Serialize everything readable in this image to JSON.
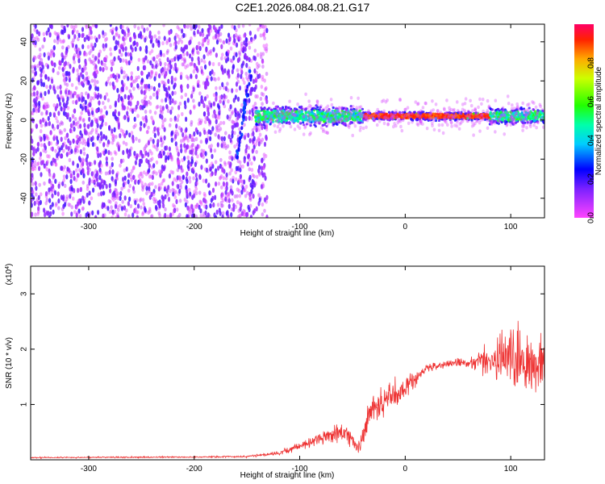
{
  "title": "C2E1.2026.084.08.21.G17",
  "chart_data": [
    {
      "type": "heatmap",
      "xlabel": "Height of straight line (km)",
      "ylabel": "Frequency (Hz)",
      "xlim": [
        -355,
        132
      ],
      "ylim": [
        -50,
        49
      ],
      "xticks": [
        -300,
        -200,
        -100,
        0,
        100
      ],
      "xtick_labels": [
        "-300",
        "-200",
        "-100",
        "0",
        "100"
      ],
      "yticks": [
        -40,
        -20,
        0,
        20,
        40
      ],
      "ytick_labels": [
        "-40",
        "-20",
        "0",
        "20",
        "40"
      ],
      "colorbar": {
        "label": "Normalized spectral amplitude",
        "range": [
          0,
          1
        ],
        "ticks": [
          0,
          0.2,
          0.4,
          0.6,
          0.8
        ],
        "tick_labels": [
          "0.0",
          "0.2",
          "0.4",
          "0.6",
          "0.8"
        ],
        "colormap": "rainbow (magenta-blue-cyan-green-yellow-red)"
      },
      "features": {
        "noise_region_x": [
          -355,
          -143
        ],
        "signal_band_x": [
          -143,
          132
        ],
        "signal_center_freq": 2,
        "peak_region_x": [
          -40,
          80
        ]
      }
    },
    {
      "type": "line",
      "xlabel": "Height of straight line (km)",
      "ylabel": "SNR (10 * v/v)",
      "multiplier_label": "(x10",
      "multiplier_exp": "4",
      "xlim": [
        -355,
        132
      ],
      "ylim": [
        0,
        35000
      ],
      "xticks": [
        -300,
        -200,
        -100,
        0,
        100
      ],
      "xtick_labels": [
        "-300",
        "-200",
        "-100",
        "0",
        "100"
      ],
      "yticks": [
        10000,
        20000,
        30000
      ],
      "ytick_labels": [
        "1",
        "2",
        "3"
      ],
      "color": "#ee3333",
      "envelope": {
        "x": [
          -355,
          -200,
          -150,
          -120,
          -100,
          -80,
          -60,
          -50,
          -45,
          -40,
          -35,
          -30,
          -20,
          -10,
          0,
          20,
          40,
          60,
          80,
          90,
          100,
          110,
          120,
          132
        ],
        "mean": [
          400,
          500,
          600,
          1200,
          2500,
          4000,
          5000,
          4000,
          2000,
          4500,
          8000,
          9000,
          11000,
          12000,
          13000,
          16500,
          17500,
          17500,
          18000,
          18500,
          19000,
          18000,
          17000,
          17000
        ],
        "noise": [
          150,
          150,
          200,
          500,
          900,
          1500,
          2000,
          2000,
          1500,
          2500,
          3500,
          4000,
          3500,
          3000,
          2500,
          900,
          800,
          1200,
          3500,
          6000,
          8000,
          7000,
          6000,
          6000
        ]
      }
    }
  ]
}
